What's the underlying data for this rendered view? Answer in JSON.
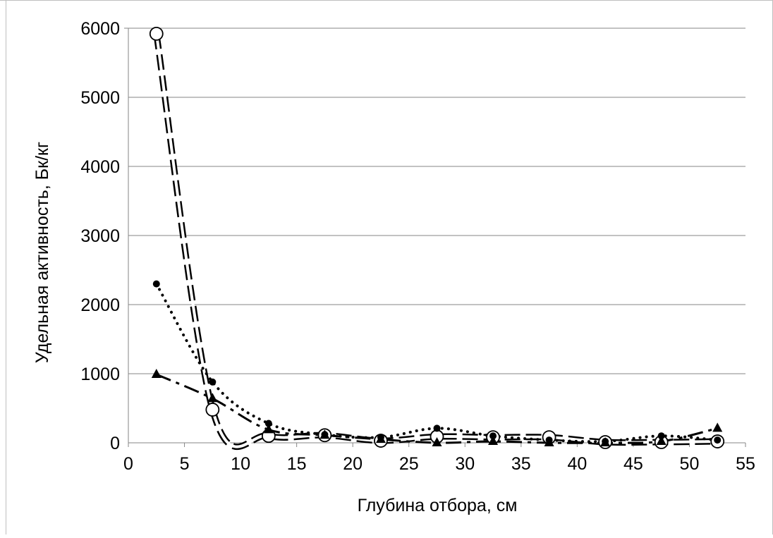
{
  "chart_data": {
    "type": "line",
    "title": "",
    "xlabel": "Глубина отбора, см",
    "ylabel": "Удельная активность, Бк/кг",
    "xlim": [
      0,
      55
    ],
    "ylim": [
      0,
      6000
    ],
    "x_ticks": [
      "0",
      "5",
      "10",
      "15",
      "20",
      "25",
      "30",
      "35",
      "40",
      "45",
      "50",
      "55"
    ],
    "y_ticks": [
      "0",
      "1000",
      "2000",
      "3000",
      "4000",
      "5000",
      "6000"
    ],
    "grid": "horizontal",
    "legend": "none",
    "series": [
      {
        "marker": "open-circle",
        "line_style": "double-dashed",
        "color": "#000000",
        "x": [
          2.5,
          7.5,
          12.5,
          17.5,
          22.5,
          27.5,
          32.5,
          37.5,
          42.5,
          47.5,
          52.5
        ],
        "y": [
          5920,
          480,
          100,
          110,
          30,
          90,
          80,
          80,
          10,
          10,
          20
        ]
      },
      {
        "marker": "filled-circle",
        "line_style": "dotted",
        "color": "#000000",
        "x": [
          2.5,
          7.5,
          12.5,
          17.5,
          22.5,
          27.5,
          32.5,
          37.5,
          42.5,
          47.5,
          52.5
        ],
        "y": [
          2300,
          880,
          280,
          120,
          80,
          210,
          100,
          40,
          20,
          100,
          40
        ]
      },
      {
        "marker": "filled-triangle",
        "line_style": "dash-dot",
        "color": "#000000",
        "x": [
          2.5,
          7.5,
          12.5,
          17.5,
          22.5,
          27.5,
          32.5,
          37.5,
          42.5,
          47.5,
          52.5
        ],
        "y": [
          990,
          640,
          190,
          110,
          50,
          0,
          20,
          0,
          0,
          20,
          210
        ]
      }
    ]
  }
}
